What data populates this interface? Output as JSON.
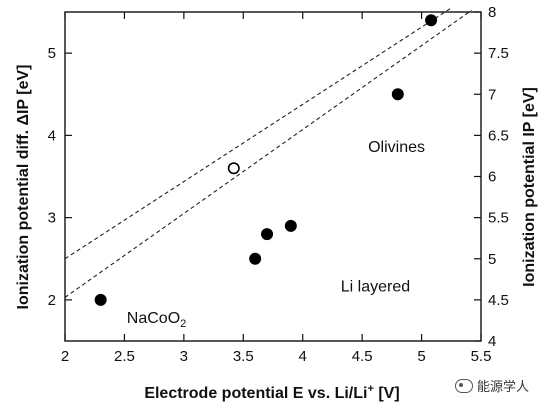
{
  "chart_data": {
    "type": "scatter",
    "x_axis": {
      "range": [
        2,
        5.5
      ],
      "ticks": [
        2,
        2.5,
        3,
        3.5,
        4,
        4.5,
        5,
        5.5
      ],
      "tick_labels": [
        "2",
        "2.5",
        "3",
        "3.5",
        "4",
        "4.5",
        "5",
        "5.5"
      ],
      "label_main": "Electrode potential E vs. Li/Li",
      "label_sup": "+",
      "label_tail": " [V]"
    },
    "y_left": {
      "range": [
        1.5,
        5.5
      ],
      "ticks": [
        2,
        3,
        4,
        5
      ],
      "tick_labels": [
        "2",
        "3",
        "4",
        "5"
      ],
      "label": "Ionization potential diff. ΔIP [eV]"
    },
    "y_right": {
      "range": [
        4,
        8
      ],
      "ticks": [
        4,
        4.5,
        5,
        5.5,
        6,
        6.5,
        7,
        7.5,
        8
      ],
      "tick_labels": [
        "4",
        "4.5",
        "5",
        "5.5",
        "6",
        "6.5",
        "7",
        "7.5",
        "8"
      ],
      "label": "Ionization potential IP [eV]"
    },
    "points": [
      {
        "x": 2.3,
        "y": 2.0,
        "filled": true
      },
      {
        "x": 3.6,
        "y": 2.5,
        "filled": true
      },
      {
        "x": 3.7,
        "y": 2.8,
        "filled": true
      },
      {
        "x": 3.9,
        "y": 2.9,
        "filled": true
      },
      {
        "x": 3.42,
        "y": 3.6,
        "filled": false
      },
      {
        "x": 4.8,
        "y": 4.5,
        "filled": true
      },
      {
        "x": 5.08,
        "y": 5.4,
        "filled": true
      }
    ],
    "guide_lines": [
      {
        "from": [
          2,
          2.5
        ],
        "to": [
          5.25,
          5.55
        ],
        "style": "dashed"
      },
      {
        "from": [
          2,
          2.03
        ],
        "to": [
          5.42,
          5.52
        ],
        "style": "dashed"
      }
    ],
    "annotations": [
      {
        "text": "Olivines",
        "x": 4.55,
        "y": 3.8
      },
      {
        "text": "Li layered",
        "x": 4.32,
        "y": 2.1
      },
      {
        "text": "NaCoO",
        "sub": "2",
        "x": 2.52,
        "y": 1.72
      }
    ],
    "grid": false,
    "legend": "none"
  },
  "watermark": {
    "text": "能源学人",
    "icon": "wechat-icon"
  }
}
